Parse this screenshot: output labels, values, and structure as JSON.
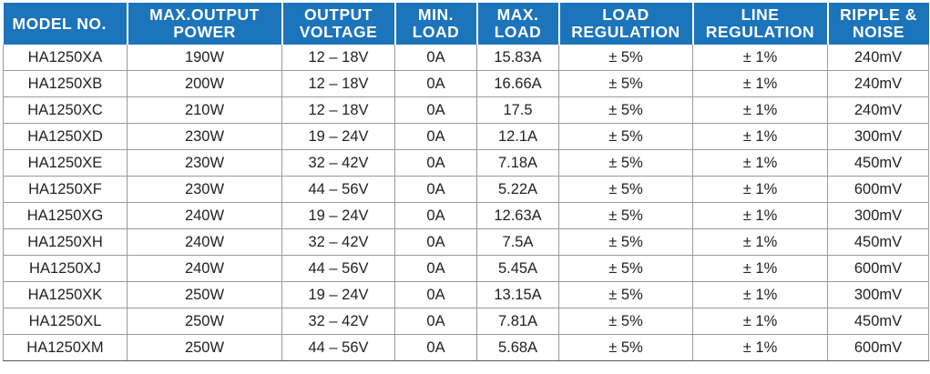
{
  "table": {
    "headers": [
      [
        "MODEL NO."
      ],
      [
        "MAX.OUTPUT",
        "POWER"
      ],
      [
        "OUTPUT",
        "VOLTAGE"
      ],
      [
        "MIN.",
        "LOAD"
      ],
      [
        "MAX.",
        "LOAD"
      ],
      [
        "LOAD",
        "REGULATION"
      ],
      [
        "LINE",
        "REGULATION"
      ],
      [
        "RIPPLE &",
        "NOISE"
      ]
    ],
    "rows": [
      [
        "HA1250XA",
        "190W",
        "12 – 18V",
        "0A",
        "15.83A",
        "± 5%",
        "± 1%",
        "240mV"
      ],
      [
        "HA1250XB",
        "200W",
        "12 – 18V",
        "0A",
        "16.66A",
        "± 5%",
        "± 1%",
        "240mV"
      ],
      [
        "HA1250XC",
        "210W",
        "12 – 18V",
        "0A",
        "17.5",
        "± 5%",
        "± 1%",
        "240mV"
      ],
      [
        "HA1250XD",
        "230W",
        "19 – 24V",
        "0A",
        "12.1A",
        "± 5%",
        "± 1%",
        "300mV"
      ],
      [
        "HA1250XE",
        "230W",
        "32 – 42V",
        "0A",
        "7.18A",
        "± 5%",
        "± 1%",
        "450mV"
      ],
      [
        "HA1250XF",
        "230W",
        "44 – 56V",
        "0A",
        "5.22A",
        "± 5%",
        "± 1%",
        "600mV"
      ],
      [
        "HA1250XG",
        "240W",
        "19 – 24V",
        "0A",
        "12.63A",
        "± 5%",
        "± 1%",
        "300mV"
      ],
      [
        "HA1250XH",
        "240W",
        "32 – 42V",
        "0A",
        "7.5A",
        "± 5%",
        "± 1%",
        "450mV"
      ],
      [
        "HA1250XJ",
        "240W",
        "44 – 56V",
        "0A",
        "5.45A",
        "± 5%",
        "± 1%",
        "600mV"
      ],
      [
        "HA1250XK",
        "250W",
        "19 – 24V",
        "0A",
        "13.15A",
        "± 5%",
        "± 1%",
        "300mV"
      ],
      [
        "HA1250XL",
        "250W",
        "32 – 42V",
        "0A",
        "7.81A",
        "± 5%",
        "± 1%",
        "450mV"
      ],
      [
        "HA1250XM",
        "250W",
        "44 – 56V",
        "0A",
        "5.68A",
        "± 5%",
        "± 1%",
        "600mV"
      ]
    ]
  },
  "colors": {
    "header_bg": "#1c74bb",
    "header_text": "#ffffff",
    "grid_line": "#9a9a9a"
  }
}
